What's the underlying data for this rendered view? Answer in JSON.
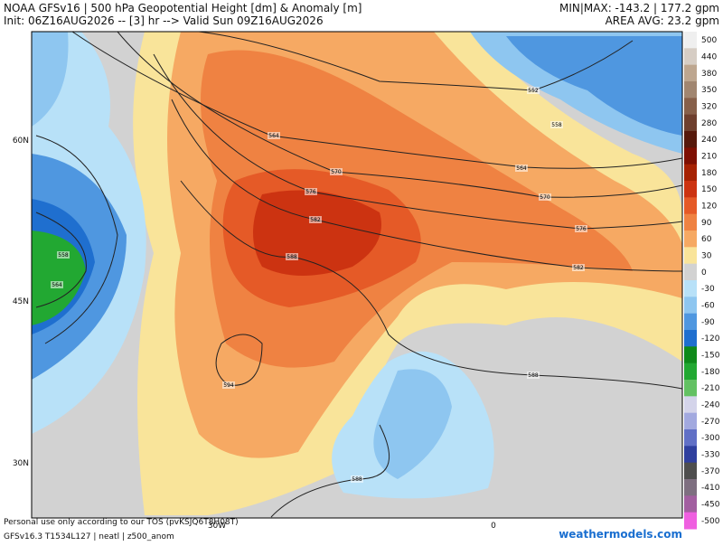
{
  "header": {
    "title": "NOAA GFSv16 | 500 hPa Geopotential Height [dm] & Anomaly [m]",
    "subtitle": "Init: 06Z16AUG2026 -- [3] hr --> Valid Sun 09Z16AUG2026",
    "minmax": "MIN|MAX: -143.2 | 177.2 gpm",
    "area_avg": "AREA AVG: 23.2 gpm"
  },
  "map": {
    "lat_labels": [
      "60N",
      "45N",
      "30N"
    ],
    "lon_labels": [
      "30W",
      "0"
    ],
    "contour_labels": [
      "552",
      "558",
      "564",
      "570",
      "576",
      "582",
      "588",
      "594",
      "558",
      "564",
      "564",
      "570",
      "576",
      "582",
      "588",
      "588"
    ]
  },
  "colorbar": {
    "labels": [
      "500",
      "440",
      "380",
      "350",
      "320",
      "280",
      "240",
      "210",
      "180",
      "150",
      "120",
      "90",
      "60",
      "30",
      "0",
      "-30",
      "-60",
      "-90",
      "-120",
      "-150",
      "-180",
      "-210",
      "-240",
      "-270",
      "-300",
      "-330",
      "-370",
      "-410",
      "-450",
      "-500"
    ],
    "colors": [
      "#efefef",
      "#d6cdc4",
      "#bda68f",
      "#a18670",
      "#87604a",
      "#6e3f2e",
      "#56190b",
      "#7e1002",
      "#a62203",
      "#cc3311",
      "#e55a27",
      "#ef8242",
      "#f6a963",
      "#f9e49a",
      "#d2d2d2",
      "#b8e1f8",
      "#8ec6f0",
      "#4f97e0",
      "#1f6fcf",
      "#0f8a1a",
      "#22a832",
      "#63c163",
      "#d4d4ea",
      "#a2a9df",
      "#6170c6",
      "#2f3f9e",
      "#4e4e4e",
      "#7e6f80",
      "#a25fa0",
      "#ef5fe0"
    ]
  },
  "footer": {
    "disclaimer": "Personal use only according to our TOS (pvKSJQ6T8H08T)",
    "model": "GFSv16.3 T1534L127 | neatl | z500_anom",
    "brand": "weathermodels.com"
  }
}
